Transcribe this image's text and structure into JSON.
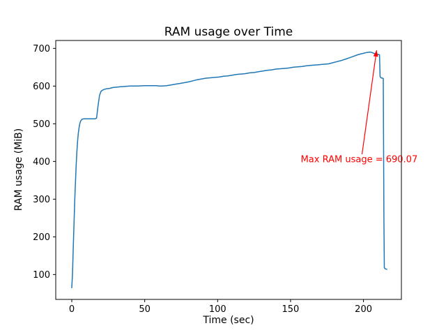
{
  "figure": {
    "background": "#ffffff"
  },
  "chart_data": {
    "type": "line",
    "title": "RAM usage over Time",
    "xlabel": "Time (sec)",
    "ylabel": "RAM usage (MiB)",
    "xlim": [
      -11,
      226
    ],
    "ylim": [
      34,
      721
    ],
    "xticks": [
      0,
      50,
      100,
      150,
      200
    ],
    "yticks": [
      100,
      200,
      300,
      400,
      500,
      600,
      700
    ],
    "grid": false,
    "legend": null,
    "axis_color": "#000000",
    "series": [
      {
        "name": "RAM usage",
        "color": "#1f77b4",
        "points": [
          [
            0,
            65
          ],
          [
            0.5,
            105
          ],
          [
            1,
            170
          ],
          [
            1.5,
            235
          ],
          [
            2,
            295
          ],
          [
            2.5,
            345
          ],
          [
            3,
            390
          ],
          [
            3.5,
            425
          ],
          [
            4,
            455
          ],
          [
            4.5,
            475
          ],
          [
            5,
            490
          ],
          [
            5.5,
            500
          ],
          [
            6,
            507
          ],
          [
            7,
            512
          ],
          [
            8,
            513
          ],
          [
            16,
            513
          ],
          [
            17,
            515
          ],
          [
            18,
            548
          ],
          [
            19,
            575
          ],
          [
            20,
            586
          ],
          [
            21,
            589
          ],
          [
            22,
            591
          ],
          [
            24,
            593
          ],
          [
            26,
            594
          ],
          [
            28,
            596
          ],
          [
            30,
            597
          ],
          [
            33,
            598
          ],
          [
            36,
            599
          ],
          [
            40,
            600
          ],
          [
            45,
            600
          ],
          [
            50,
            601
          ],
          [
            55,
            601
          ],
          [
            58,
            601
          ],
          [
            60,
            600
          ],
          [
            62,
            600
          ],
          [
            65,
            601
          ],
          [
            68,
            603
          ],
          [
            71,
            605
          ],
          [
            74,
            607
          ],
          [
            77,
            609
          ],
          [
            80,
            611
          ],
          [
            83,
            614
          ],
          [
            86,
            617
          ],
          [
            89,
            619
          ],
          [
            92,
            621
          ],
          [
            95,
            622
          ],
          [
            98,
            623
          ],
          [
            101,
            624
          ],
          [
            104,
            626
          ],
          [
            107,
            627
          ],
          [
            110,
            629
          ],
          [
            113,
            631
          ],
          [
            116,
            632
          ],
          [
            119,
            633
          ],
          [
            122,
            635
          ],
          [
            125,
            636
          ],
          [
            128,
            638
          ],
          [
            131,
            640
          ],
          [
            134,
            642
          ],
          [
            137,
            643
          ],
          [
            140,
            645
          ],
          [
            143,
            646
          ],
          [
            146,
            647
          ],
          [
            149,
            648
          ],
          [
            152,
            650
          ],
          [
            155,
            651
          ],
          [
            158,
            652
          ],
          [
            161,
            654
          ],
          [
            164,
            655
          ],
          [
            167,
            656
          ],
          [
            170,
            657
          ],
          [
            173,
            658
          ],
          [
            176,
            659
          ],
          [
            179,
            662
          ],
          [
            182,
            665
          ],
          [
            185,
            668
          ],
          [
            188,
            672
          ],
          [
            191,
            676
          ],
          [
            194,
            680
          ],
          [
            196,
            683
          ],
          [
            198,
            685
          ],
          [
            200,
            687
          ],
          [
            202,
            689
          ],
          [
            204,
            690
          ],
          [
            205,
            690.07
          ],
          [
            206,
            689
          ],
          [
            207,
            687
          ],
          [
            208,
            686
          ],
          [
            209,
            685
          ],
          [
            210,
            684
          ],
          [
            211,
            683
          ],
          [
            211.4,
            625
          ],
          [
            212,
            622
          ],
          [
            213,
            621
          ],
          [
            213.6,
            620
          ],
          [
            214,
            250
          ],
          [
            214.3,
            118
          ],
          [
            215,
            115
          ],
          [
            216,
            114
          ]
        ]
      }
    ],
    "annotation": {
      "text": "Max RAM usage = 690.07",
      "max_value": 690.07,
      "color": "#ff0000",
      "text_data_xy": [
        157,
        398
      ],
      "arrow_base_data_xy": [
        199,
        419
      ],
      "arrow_tip_data_xy": [
        209,
        695
      ]
    }
  }
}
